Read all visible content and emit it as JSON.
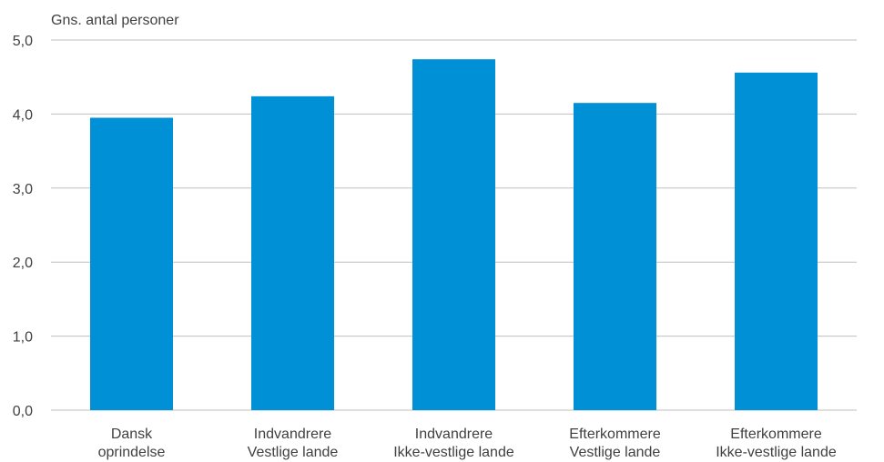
{
  "chart_data": {
    "type": "bar",
    "ylabel": "Gns. antal personer",
    "categories": [
      [
        "Dansk",
        "oprindelse"
      ],
      [
        "Indvandrere",
        "Vestlige lande"
      ],
      [
        "Indvandrere",
        "Ikke-vestlige lande"
      ],
      [
        "Efterkommere",
        "Vestlige lande"
      ],
      [
        "Efterkommere",
        "Ikke-vestlige lande"
      ]
    ],
    "values": [
      3.95,
      4.24,
      4.74,
      4.15,
      4.56
    ],
    "ylim": [
      0,
      5
    ],
    "yticks": [
      "0,0",
      "1,0",
      "2,0",
      "3,0",
      "4,0",
      "5,0"
    ],
    "grid": true,
    "bar_color": "#0090d6",
    "grid_color": "#bfbfbf"
  }
}
